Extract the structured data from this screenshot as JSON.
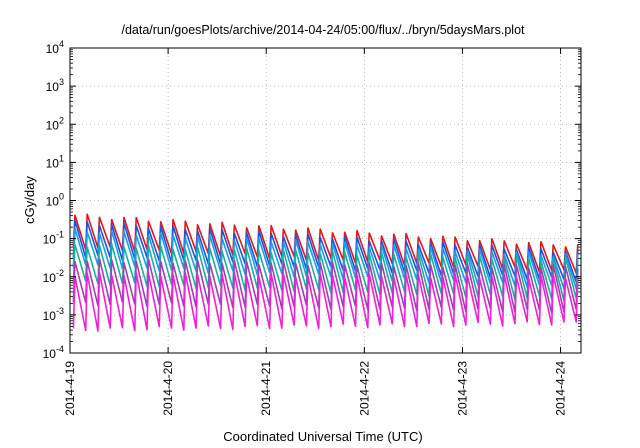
{
  "chart_data": {
    "type": "line",
    "title": "/data/run/goesPlots/archive/2014-04-24/05:00/flux/../bryn/5daysMars.plot",
    "xlabel": "Coordinated Universal Time (UTC)",
    "ylabel": "cGy/day",
    "yscale": "log",
    "ylim": [
      0.0001,
      10000
    ],
    "xlim": [
      "2014-04-19T00:00",
      "2014-04-24T05:00"
    ],
    "grid": true,
    "x_ticks": [
      "2014-4-19",
      "2014-4-20",
      "2014-4-21",
      "2014-4-22",
      "2014-4-23",
      "2014-4-24"
    ],
    "y_ticks": [
      {
        "base": "10",
        "exp": "-4"
      },
      {
        "base": "10",
        "exp": "-3"
      },
      {
        "base": "10",
        "exp": "-2"
      },
      {
        "base": "10",
        "exp": "-1"
      },
      {
        "base": "10",
        "exp": "0"
      },
      {
        "base": "10",
        "exp": "1"
      },
      {
        "base": "10",
        "exp": "2"
      },
      {
        "base": "10",
        "exp": "3"
      },
      {
        "base": "10",
        "exp": "4"
      }
    ],
    "sawtooth_period_hours": 3,
    "series": [
      {
        "color": "#e8141b",
        "peak_start": 0.42,
        "peak_end": 0.065,
        "trough_start": 0.06,
        "trough_end": 0.013
      },
      {
        "color": "#1a55e0",
        "peak_start": 0.28,
        "peak_end": 0.045,
        "trough_start": 0.035,
        "trough_end": 0.008
      },
      {
        "color": "#1e9be8",
        "peak_start": 0.17,
        "peak_end": 0.035,
        "trough_start": 0.02,
        "trough_end": 0.005
      },
      {
        "color": "#1ab0a0",
        "peak_start": 0.07,
        "peak_end": 0.028,
        "trough_start": 0.007,
        "trough_end": 0.0025
      },
      {
        "color": "#a03fb5",
        "peak_start": 0.028,
        "peak_end": 0.018,
        "trough_start": 0.002,
        "trough_end": 0.0012
      },
      {
        "color": "#f21fd8",
        "peak_start": 0.012,
        "peak_end": 0.01,
        "trough_start": 0.0004,
        "trough_end": 0.0006
      }
    ]
  }
}
